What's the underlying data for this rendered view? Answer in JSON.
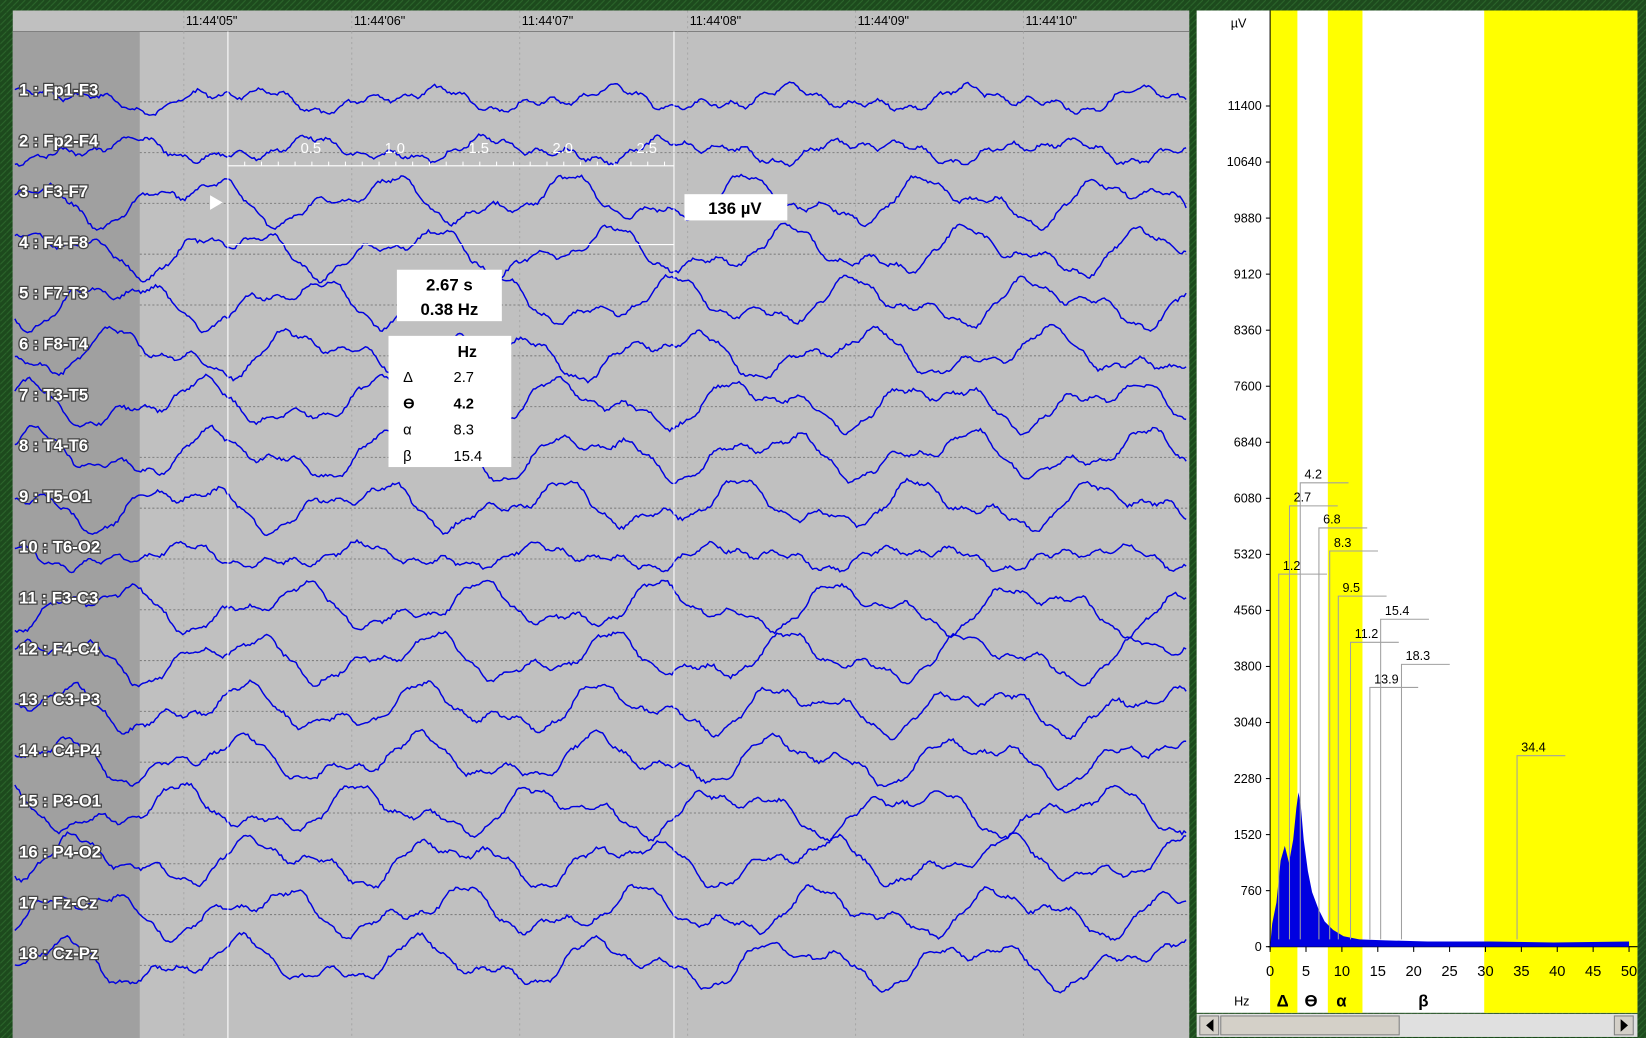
{
  "time_axis": [
    "11:44'05\"",
    "11:44'06\"",
    "11:44'07\"",
    "11:44'08\"",
    "11:44'09\"",
    "11:44'10\""
  ],
  "channels": [
    "1 : Fp1-F3",
    "2 : Fp2-F4",
    "3 : F3-F7",
    "4 : F4-F8",
    "5 : F7-T3",
    "6 : F8-T4",
    "7 : T3-T5",
    "8 : T4-T6",
    "9 : T5-O1",
    "10 : T6-O2",
    "11 : F3-C3",
    "12 : F4-C4",
    "13 : C3-P3",
    "14 : C4-P4",
    "15 : P3-O1",
    "16 : P4-O2",
    "17 : Fz-Cz",
    "18 : Cz-Pz"
  ],
  "ruler": [
    "0.5",
    "1.0",
    "1.5",
    "2.0",
    "2.5"
  ],
  "amplitude": "136 µV",
  "measure": {
    "duration": "2.67 s",
    "frequency": "0.38 Hz"
  },
  "band_table": {
    "header": "Hz",
    "rows": [
      [
        "Δ",
        "2.7"
      ],
      [
        "ϴ",
        "4.2"
      ],
      [
        "α",
        "8.3"
      ],
      [
        "β",
        "15.4"
      ]
    ]
  },
  "spectrum": {
    "unit": "µV",
    "y_ticks": [
      "11400",
      "10640",
      "9880",
      "9120",
      "8360",
      "7600",
      "6840",
      "6080",
      "5320",
      "4560",
      "3800",
      "3040",
      "2280",
      "1520",
      "760",
      "0"
    ],
    "x_unit": "Hz",
    "x_ticks": [
      "0",
      "5",
      "10",
      "15",
      "20",
      "25",
      "30",
      "35",
      "40",
      "45",
      "50"
    ],
    "bands": [
      "Δ",
      "ϴ",
      "α",
      "β"
    ],
    "peaks": [
      "4.2",
      "2.7",
      "6.8",
      "8.3",
      "1.2",
      "9.5",
      "15.4",
      "11.2",
      "18.3",
      "13.9",
      "34.4"
    ]
  }
}
